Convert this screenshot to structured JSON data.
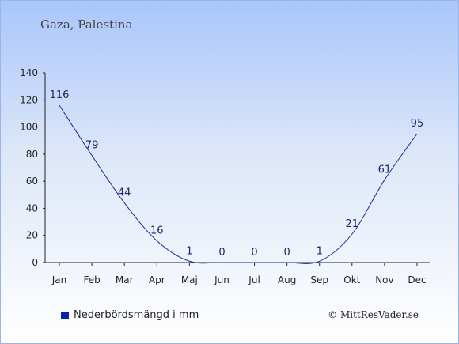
{
  "chart_data": {
    "type": "line",
    "title": "Gaza, Palestina",
    "categories": [
      "Jan",
      "Feb",
      "Mar",
      "Apr",
      "Maj",
      "Jun",
      "Jul",
      "Aug",
      "Sep",
      "Okt",
      "Nov",
      "Dec"
    ],
    "series": [
      {
        "name": "Nederbördsmängd i mm",
        "values": [
          116,
          79,
          44,
          16,
          1,
          0,
          0,
          0,
          1,
          21,
          61,
          95
        ],
        "color": "#1a2a9a"
      }
    ],
    "ylim": [
      0,
      140
    ],
    "yticks": [
      0,
      20,
      40,
      60,
      80,
      100,
      120,
      140
    ],
    "data_labels": true,
    "legend_position": "bottom-left"
  },
  "legend": {
    "label": "Nederbördsmängd i mm",
    "swatch_color": "#0a20b0"
  },
  "credit": "© MittResVader.se"
}
